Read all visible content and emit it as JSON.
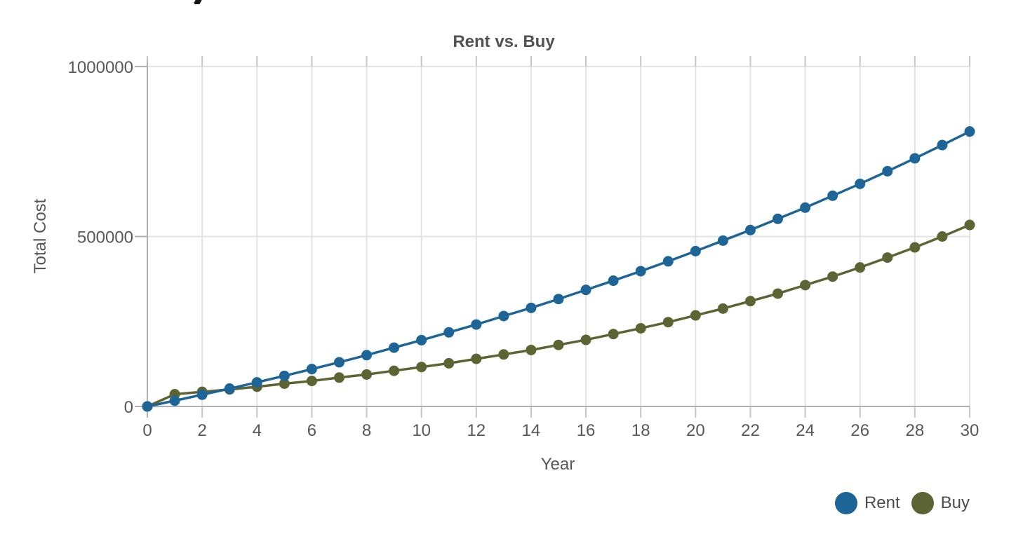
{
  "chart": {
    "title": "Rent vs. Buy",
    "x_axis_label": "Year",
    "y_axis_label": "Total Cost"
  },
  "palette": {
    "rent_blue": "#1d6596",
    "buy_olive": "#5d6433",
    "grid": "#e3e3e3",
    "stub": "#c6c6c6",
    "axis": "#b0b0b0",
    "tick_text": "#585858",
    "title_text": "#525252"
  },
  "chart_data": {
    "type": "line",
    "title": "Rent vs. Buy",
    "xlabel": "Year",
    "ylabel": "Total Cost",
    "xlim": [
      0,
      30
    ],
    "ylim": [
      0,
      1000000
    ],
    "grid": true,
    "marker": "circle",
    "legend_position": "bottom-right",
    "x_ticks": [
      {
        "value": 0,
        "label": "0"
      },
      {
        "value": 2,
        "label": "2"
      },
      {
        "value": 4,
        "label": "4"
      },
      {
        "value": 6,
        "label": "6"
      },
      {
        "value": 8,
        "label": "8"
      },
      {
        "value": 10,
        "label": "10"
      },
      {
        "value": 12,
        "label": "12"
      },
      {
        "value": 14,
        "label": "14"
      },
      {
        "value": 16,
        "label": "16"
      },
      {
        "value": 18,
        "label": "18"
      },
      {
        "value": 20,
        "label": "20"
      },
      {
        "value": 22,
        "label": "22"
      },
      {
        "value": 24,
        "label": "24"
      },
      {
        "value": 26,
        "label": "26"
      },
      {
        "value": 28,
        "label": "28"
      },
      {
        "value": 30,
        "label": "30"
      }
    ],
    "y_ticks": [
      {
        "value": 0,
        "label": "0"
      },
      {
        "value": 500000,
        "label": "500000"
      },
      {
        "value": 1000000,
        "label": "1000000"
      }
    ],
    "x": [
      0,
      1,
      2,
      3,
      4,
      5,
      6,
      7,
      8,
      9,
      10,
      11,
      12,
      13,
      14,
      15,
      16,
      17,
      18,
      19,
      20,
      21,
      22,
      23,
      24,
      25,
      26,
      27,
      28,
      29,
      30
    ],
    "series": [
      {
        "name": "Rent",
        "color": "#1d6596",
        "values": [
          0,
          17000,
          34500,
          52500,
          71000,
          90000,
          110000,
          130000,
          151000,
          173000,
          195000,
          218000,
          241000,
          266000,
          290000,
          316000,
          343000,
          370000,
          398000,
          427000,
          457000,
          488000,
          519000,
          552000,
          585000,
          620000,
          655000,
          692000,
          730000,
          769000,
          809000
        ]
      },
      {
        "name": "Buy",
        "color": "#5d6433",
        "values": [
          0,
          36000,
          43000,
          50000,
          58000,
          67000,
          75000,
          85000,
          94000,
          105000,
          116000,
          127000,
          140000,
          153000,
          166000,
          181000,
          196000,
          213000,
          230000,
          248000,
          268000,
          288000,
          310000,
          332000,
          357000,
          382000,
          409000,
          438000,
          468000,
          500000,
          534000
        ]
      }
    ]
  }
}
